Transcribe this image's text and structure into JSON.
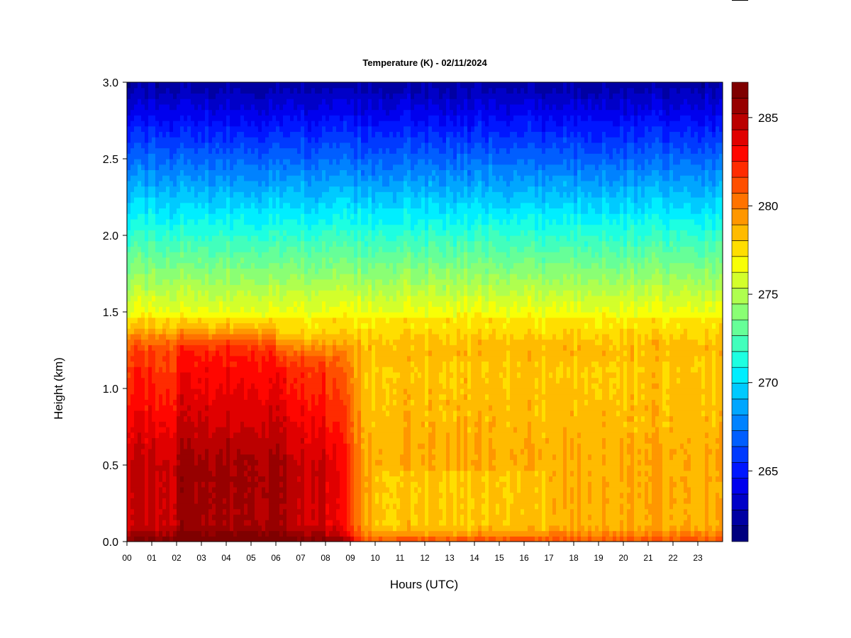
{
  "chart_data": {
    "type": "heatmap",
    "title": "Temperature (K) - 02/11/2024",
    "xlabel": "Hours (UTC)",
    "ylabel": "Height (km)",
    "x_ticks": [
      "00",
      "01",
      "02",
      "03",
      "04",
      "05",
      "06",
      "07",
      "08",
      "09",
      "10",
      "11",
      "12",
      "13",
      "14",
      "15",
      "16",
      "17",
      "18",
      "19",
      "20",
      "21",
      "22",
      "23"
    ],
    "y_ticks": [
      "0.0",
      "0.5",
      "1.0",
      "1.5",
      "2.0",
      "2.5",
      "3.0"
    ],
    "xlim": [
      0,
      24
    ],
    "ylim": [
      0,
      3
    ],
    "colorbar": {
      "ticks": [
        "265",
        "270",
        "275",
        "280",
        "285"
      ],
      "range": [
        261,
        287
      ],
      "levels": 26,
      "colors": [
        "#00007f",
        "#0000a3",
        "#0000c8",
        "#0000ee",
        "#0016ff",
        "#003aff",
        "#005eff",
        "#0082ff",
        "#00a6ff",
        "#00caff",
        "#00eeff",
        "#1dffe1",
        "#42ffbc",
        "#66ff98",
        "#8aff74",
        "#afff4f",
        "#d3ff2b",
        "#f8ff06",
        "#ffde00",
        "#ffbb00",
        "#ff9700",
        "#ff7300",
        "#ff4f00",
        "#ff2b00",
        "#ff0600",
        "#e00000",
        "#bb0000",
        "#970000",
        "#7f0000"
      ]
    },
    "grid": false
  }
}
